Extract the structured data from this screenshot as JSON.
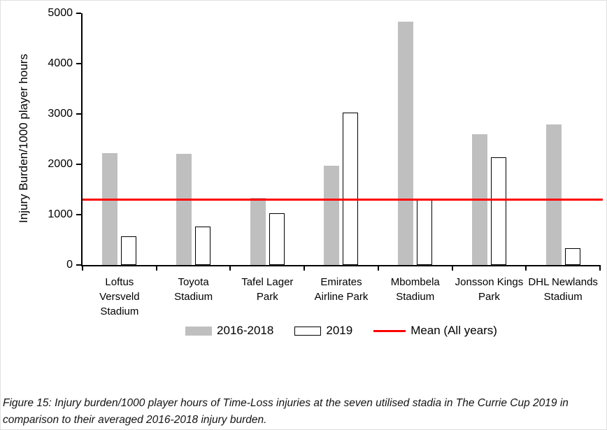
{
  "chart_data": {
    "type": "bar",
    "title": "",
    "xlabel": "",
    "ylabel": "Injury Burden/1000 player hours",
    "ylim": [
      0,
      5000
    ],
    "yticks": [
      0,
      1000,
      2000,
      3000,
      4000,
      5000
    ],
    "grid": false,
    "legend_position": "bottom",
    "categories": [
      "Loftus\nVersveld\nStadium",
      "Toyota\nStadium",
      "Tafel Lager\nPark",
      "Emirates\nAirline Park",
      "Mbombela\nStadium",
      "Jonsson Kings\nPark",
      "DHL Newlands\nStadium"
    ],
    "series": [
      {
        "name": "2016-2018",
        "color": "#BFBFBF",
        "values": [
          2220,
          2210,
          1330,
          1970,
          4840,
          2600,
          2790
        ]
      },
      {
        "name": "2019",
        "color": "#FFFFFF",
        "border": "#000000",
        "values": [
          570,
          760,
          1030,
          3030,
          1310,
          2140,
          330
        ]
      }
    ],
    "mean_line": {
      "label": "Mean (All years)",
      "value": 1300,
      "color": "#FF0000"
    }
  },
  "caption": "Figure 15: Injury burden/1000 player hours of Time-Loss injuries at the seven utilised stadia in The Currie Cup 2019 in comparison to their averaged 2016-2018 injury burden."
}
